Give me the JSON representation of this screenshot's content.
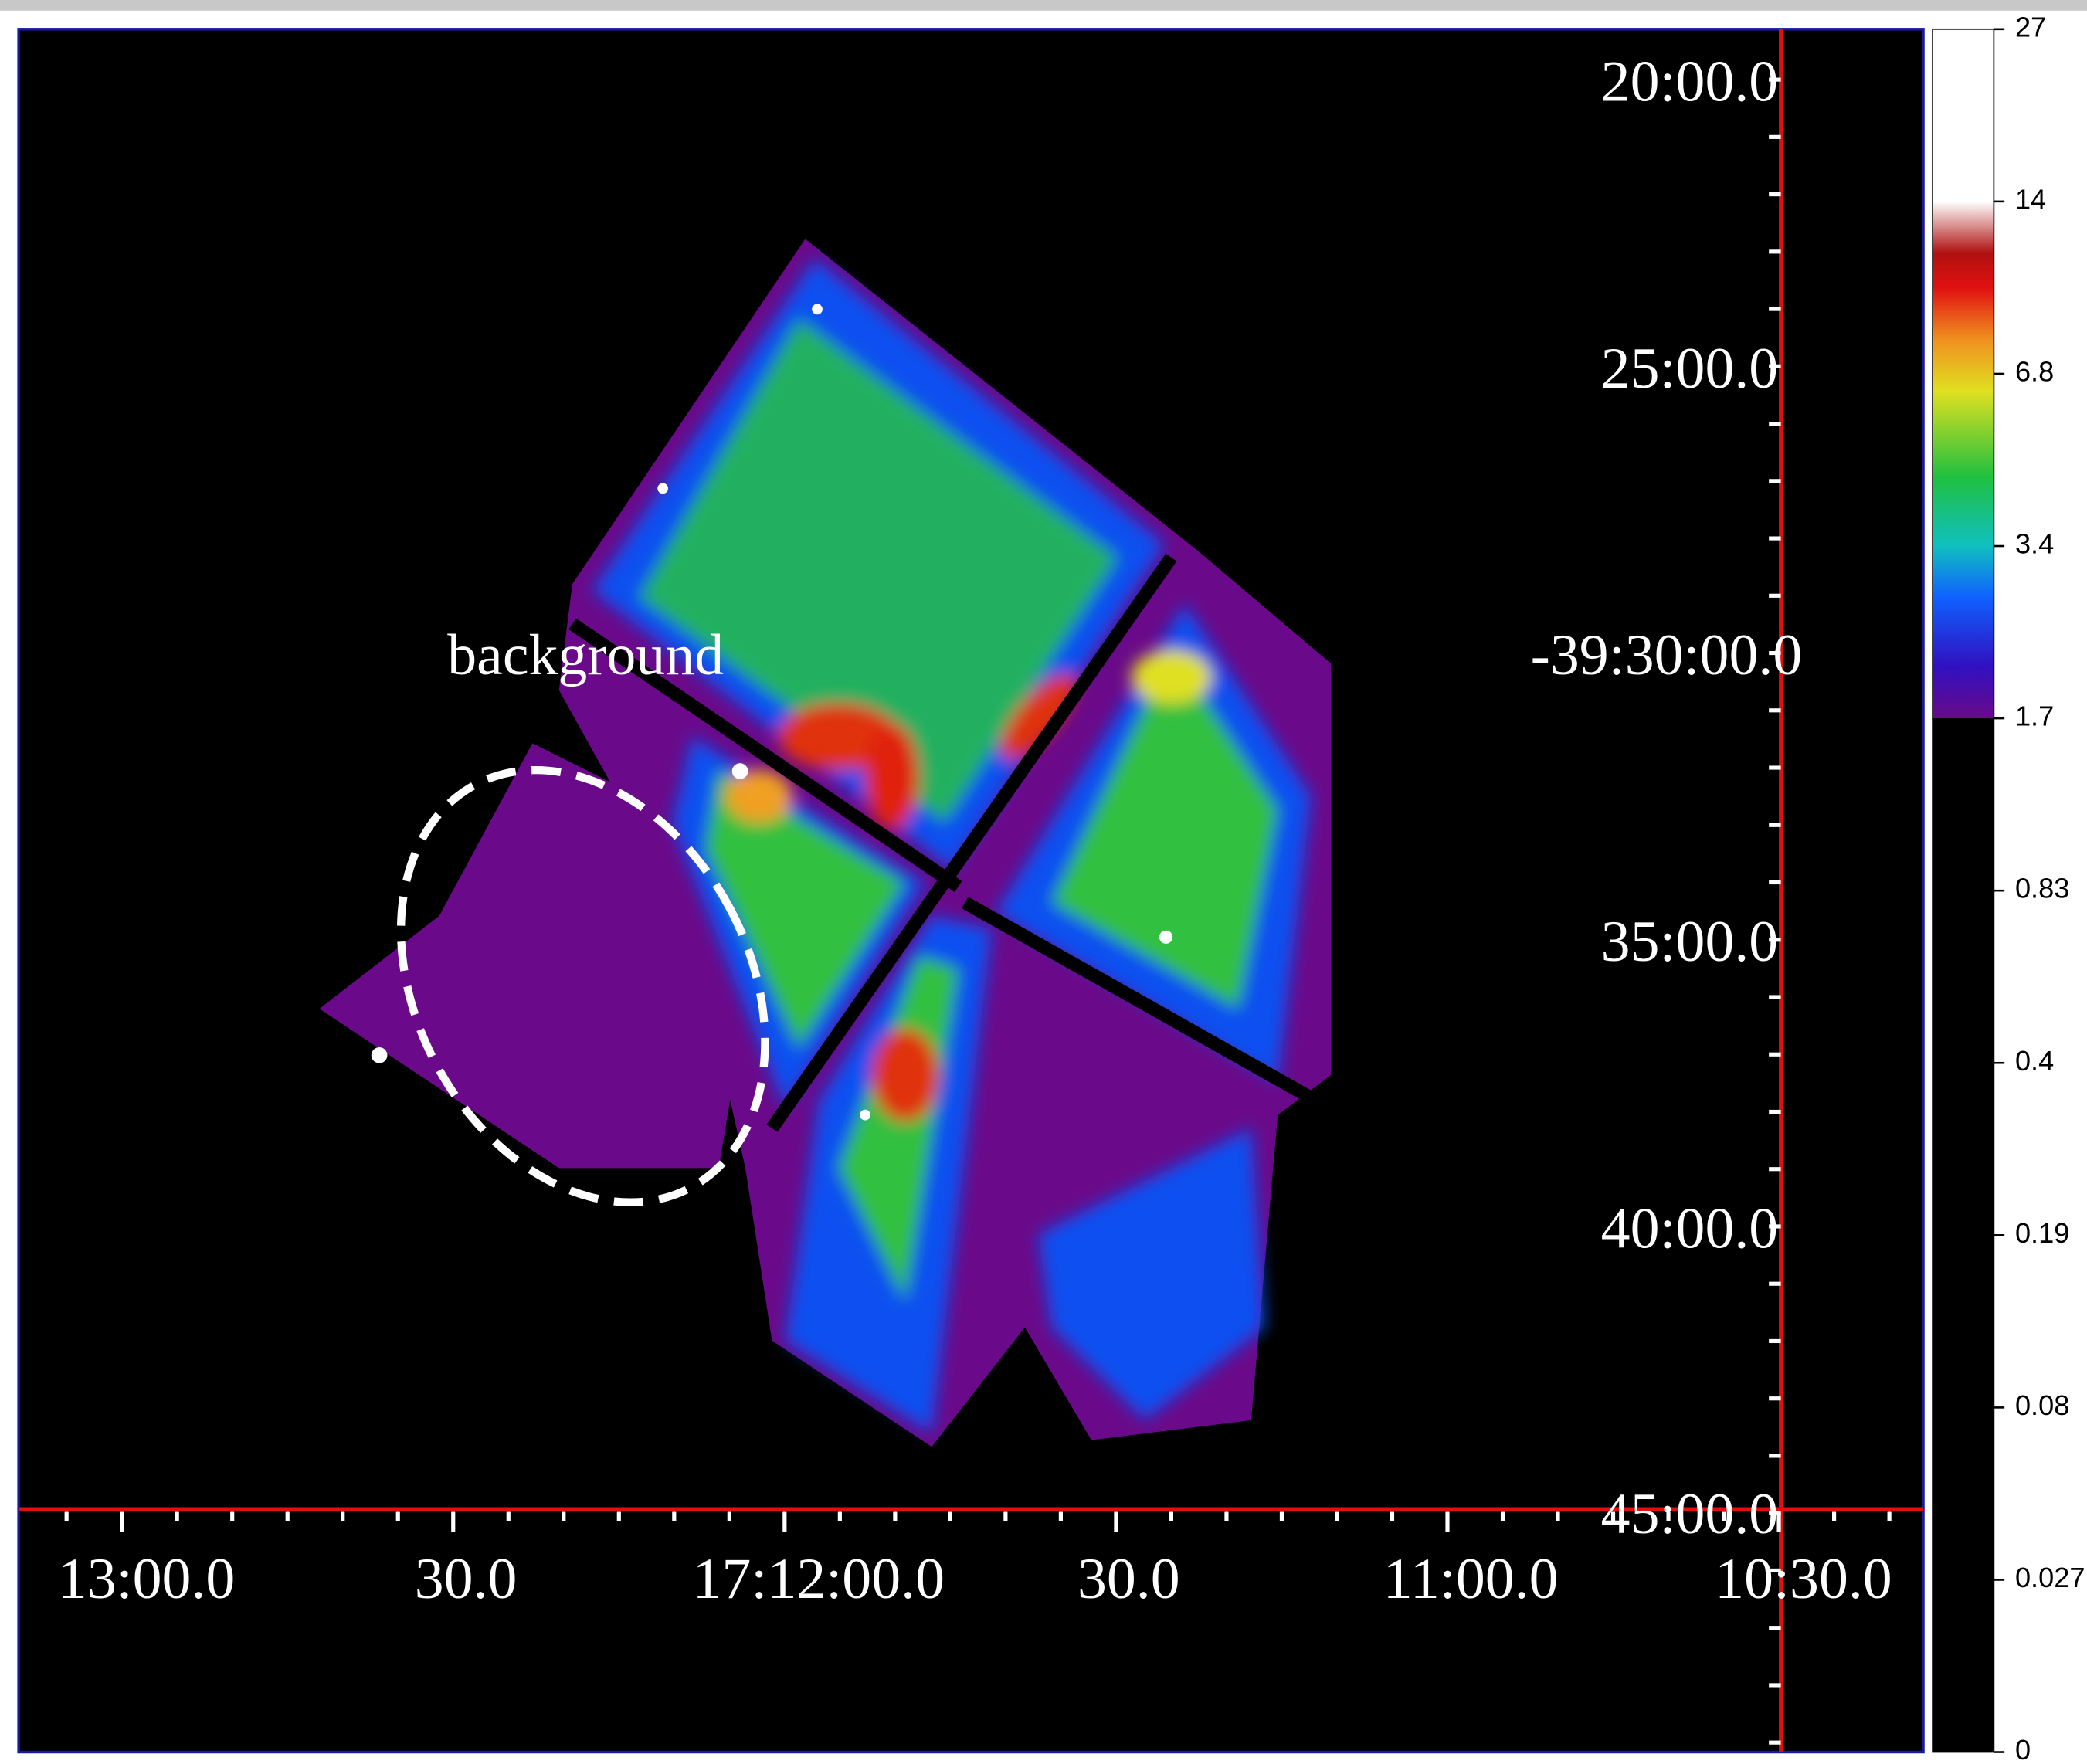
{
  "image": {
    "annotation": "background",
    "x_axis_labels": [
      "13:00.0",
      "30.0",
      "17:12:00.0",
      "30.0",
      "11:00.0",
      "10:30.0"
    ],
    "y_axis_labels": [
      "20:00.0",
      "25:00.0",
      "-39:30:00.0",
      "35:00.0",
      "40:00.0",
      "45:00.0"
    ],
    "colorbar_labels": [
      "27",
      "14",
      "6.8",
      "3.4",
      "1.7",
      "0.83",
      "0.4",
      "0.19",
      "0.08",
      "0.027",
      "0"
    ]
  }
}
